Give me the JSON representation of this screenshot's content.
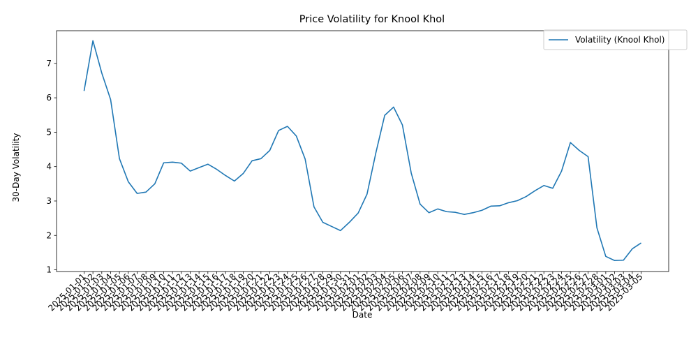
{
  "chart_data": {
    "type": "line",
    "title": "Price Volatility for Knool Khol",
    "xlabel": "Date",
    "ylabel": "30-Day Volatility",
    "ylim": [
      0.95,
      7.95
    ],
    "yticks": [
      1,
      2,
      3,
      4,
      5,
      6,
      7
    ],
    "grid": false,
    "legend_position": "top-right",
    "series_color": "#1f77b4",
    "x": [
      "2025-01-01",
      "2025-01-02",
      "2025-01-03",
      "2025-01-04",
      "2025-01-05",
      "2025-01-06",
      "2025-01-07",
      "2025-01-08",
      "2025-01-09",
      "2025-01-10",
      "2025-01-11",
      "2025-01-12",
      "2025-01-13",
      "2025-01-14",
      "2025-01-15",
      "2025-01-16",
      "2025-01-17",
      "2025-01-18",
      "2025-01-19",
      "2025-01-20",
      "2025-01-21",
      "2025-01-22",
      "2025-01-23",
      "2025-01-24",
      "2025-01-25",
      "2025-01-26",
      "2025-01-27",
      "2025-01-28",
      "2025-01-29",
      "2025-01-30",
      "2025-01-31",
      "2025-02-01",
      "2025-02-02",
      "2025-02-03",
      "2025-02-04",
      "2025-02-05",
      "2025-02-06",
      "2025-02-07",
      "2025-02-08",
      "2025-02-09",
      "2025-02-10",
      "2025-02-11",
      "2025-02-12",
      "2025-02-13",
      "2025-02-14",
      "2025-02-15",
      "2025-02-16",
      "2025-02-17",
      "2025-02-18",
      "2025-02-19",
      "2025-02-20",
      "2025-02-21",
      "2025-02-22",
      "2025-02-23",
      "2025-02-24",
      "2025-02-25",
      "2025-02-26",
      "2025-02-27",
      "2025-02-28",
      "2025-03-01",
      "2025-03-02",
      "2025-03-03",
      "2025-03-04",
      "2025-03-05"
    ],
    "series": [
      {
        "name": "Volatility (Knool Khol)",
        "values": [
          6.2,
          7.66,
          6.72,
          5.95,
          4.23,
          3.56,
          3.22,
          3.26,
          3.5,
          4.11,
          4.13,
          4.1,
          3.87,
          3.97,
          4.07,
          3.92,
          3.74,
          3.58,
          3.8,
          4.17,
          4.23,
          4.47,
          5.05,
          5.17,
          4.89,
          4.22,
          2.83,
          2.38,
          2.26,
          2.14,
          2.38,
          2.65,
          3.2,
          4.4,
          5.49,
          5.73,
          5.21,
          3.81,
          2.91,
          2.66,
          2.77,
          2.69,
          2.67,
          2.61,
          2.66,
          2.73,
          2.85,
          2.86,
          2.95,
          3.01,
          3.13,
          3.3,
          3.45,
          3.37,
          3.87,
          4.7,
          4.47,
          4.29,
          2.22,
          1.39,
          1.27,
          1.28,
          1.61,
          1.78
        ]
      }
    ]
  }
}
